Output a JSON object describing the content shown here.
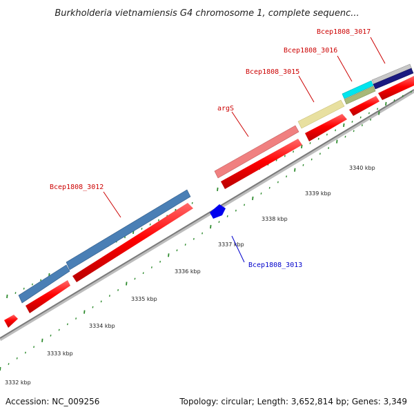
{
  "title": "Burkholderia vietnamiensis G4 chromosome 1, complete sequenc...",
  "footer": {
    "accession": "Accession: NC_009256",
    "summary": "Topology: circular; Length: 3,652,814 bp; Genes: 3,349"
  },
  "colors": {
    "cds": "#ff0000",
    "gene_blue": "#4a7fb5",
    "gene_pink": "#f08080",
    "gene_yellow": "#e8e0a0",
    "gene_cyan": "#00e5ee",
    "gene_olive": "#a8b878",
    "gene_navy": "#1a1a80",
    "minus_strand": "#0000ee",
    "backbone": "#808080",
    "tick": "#2e8b2e"
  },
  "ticks": [
    {
      "label": "3332 kbp"
    },
    {
      "label": "3333 kbp"
    },
    {
      "label": "3334 kbp"
    },
    {
      "label": "3335 kbp"
    },
    {
      "label": "3336 kbp"
    },
    {
      "label": "3337 kbp"
    },
    {
      "label": "3338 kbp"
    },
    {
      "label": "3339 kbp"
    },
    {
      "label": "3340 kbp"
    }
  ],
  "gene_labels": [
    {
      "text": "Bcep1808_3012",
      "color": "red"
    },
    {
      "text": "Bcep1808_3013",
      "color": "blue"
    },
    {
      "text": "argS",
      "color": "red"
    },
    {
      "text": "Bcep1808_3015",
      "color": "red"
    },
    {
      "text": "Bcep1808_3016",
      "color": "red"
    },
    {
      "text": "Bcep1808_3017",
      "color": "red"
    }
  ]
}
